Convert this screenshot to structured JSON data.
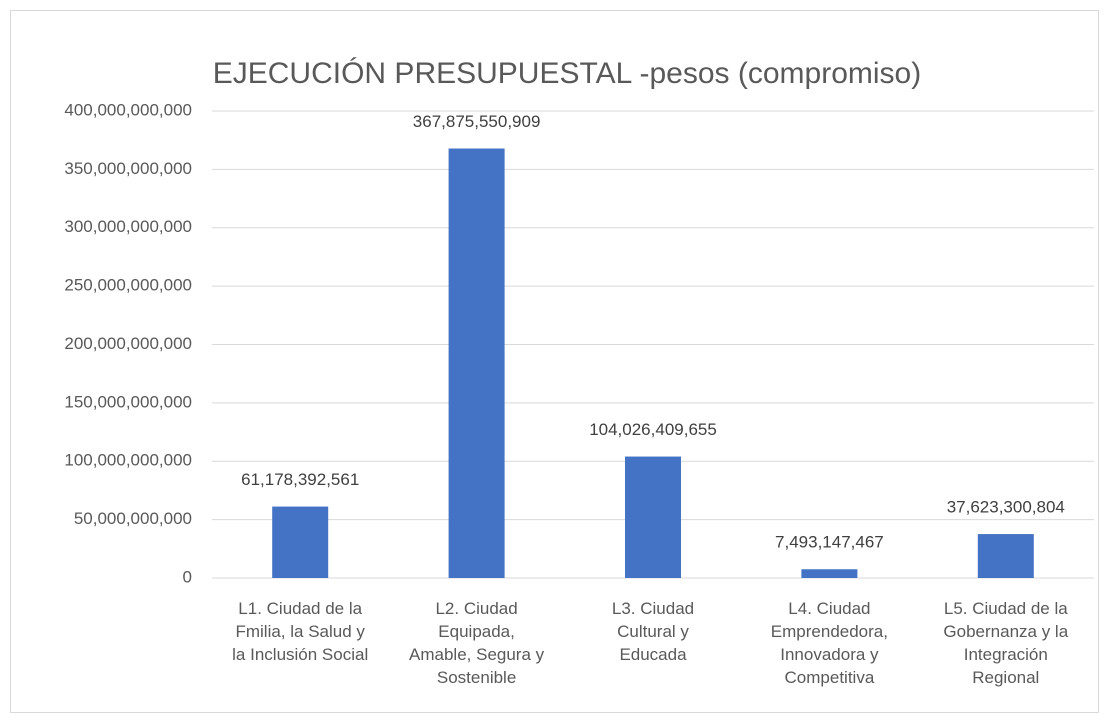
{
  "chart_data": {
    "type": "bar",
    "title": "EJECUCIÓN PRESUPUESTAL -pesos (compromiso)",
    "categories": [
      "L1. Ciudad de la\nFmilia, la Salud y\nla Inclusión Social",
      "L2. Ciudad\nEquipada,\nAmable, Segura y\nSostenible",
      "L3. Ciudad\nCultural y\nEducada",
      "L4. Ciudad\nEmprendedora,\nInnovadora y\nCompetitiva",
      "L5. Ciudad de la\nGobernanza y la\nIntegración\nRegional"
    ],
    "values": [
      61178392561,
      367875550909,
      104026409655,
      7493147467,
      37623300804
    ],
    "value_labels": [
      "61,178,392,561",
      "367,875,550,909",
      "104,026,409,655",
      "7,493,147,467",
      "37,623,300,804"
    ],
    "color": "#4472c4",
    "ylim": [
      0,
      400000000000
    ],
    "yticks": [
      0,
      {
        "value": 50000000000,
        "label": "50,000,000,000"
      },
      {
        "value": 100000000000,
        "label": "100,000,000,000"
      },
      {
        "value": 150000000000,
        "label": "150,000,000,000"
      },
      {
        "value": 200000000000,
        "label": "200,000,000,000"
      },
      {
        "value": 250000000000,
        "label": "250,000,000,000"
      },
      {
        "value": 300000000000,
        "label": "300,000,000,000"
      },
      {
        "value": 350000000000,
        "label": "350,000,000,000"
      },
      {
        "value": 400000000000,
        "label": "400,000,000,000"
      }
    ],
    "grid": true
  }
}
